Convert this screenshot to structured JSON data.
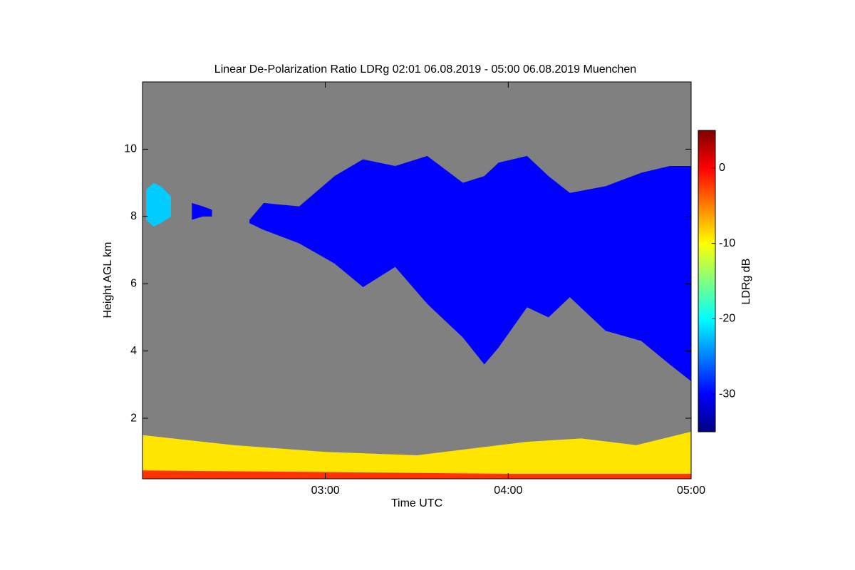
{
  "chart_data": {
    "type": "heatmap",
    "title": "Linear De-Polarization Ratio LDRg   02:01 06.08.2019 - 05:00 06.08.2019 Muenchen",
    "xlabel": "Time UTC",
    "ylabel": "Height AGL km",
    "colorbar_label": "LDRg dB",
    "background": "#808080",
    "xlim": [
      2,
      5
    ],
    "xticks": [
      {
        "value": 3,
        "label": "03:00"
      },
      {
        "value": 4,
        "label": "04:00"
      },
      {
        "value": 5,
        "label": "05:00"
      }
    ],
    "ylim": [
      0.2,
      12
    ],
    "yticks": [
      2,
      4,
      6,
      8,
      10
    ],
    "zlim": [
      -35,
      5
    ],
    "zticks": [
      -30,
      -20,
      -10,
      0
    ],
    "colormap": "jet",
    "layers": [
      {
        "x": [
          2.02,
          2.06,
          2.1,
          2.156
        ],
        "top": [
          8.8,
          9.0,
          8.9,
          8.6
        ],
        "base": [
          7.9,
          7.7,
          7.8,
          8.0
        ],
        "value": -22
      },
      {
        "x": [
          2.27,
          2.33,
          2.38
        ],
        "top": [
          8.4,
          8.3,
          8.2
        ],
        "base": [
          7.9,
          8.0,
          8.0
        ],
        "value": -30
      },
      {
        "x": [
          2.585,
          2.663,
          2.857,
          3.05,
          3.206,
          3.382,
          3.557,
          3.752,
          3.869,
          3.947,
          4.103,
          4.22,
          4.337,
          4.532,
          4.727,
          4.883,
          5.0
        ],
        "top": [
          7.9,
          8.4,
          8.3,
          9.2,
          9.7,
          9.5,
          9.8,
          9.0,
          9.2,
          9.6,
          9.8,
          9.2,
          8.7,
          8.9,
          9.3,
          9.5,
          9.5
        ],
        "base": [
          7.8,
          7.6,
          7.2,
          6.6,
          5.9,
          6.5,
          5.4,
          4.4,
          3.6,
          4.1,
          5.3,
          5.0,
          5.6,
          4.6,
          4.3,
          3.6,
          3.1
        ],
        "value": -30
      },
      {
        "x": [
          2.0,
          2.5,
          3.0,
          3.5,
          3.8,
          4.1,
          4.4,
          4.7,
          5.0
        ],
        "top": [
          1.5,
          1.2,
          1.0,
          0.9,
          1.1,
          1.3,
          1.4,
          1.2,
          1.6
        ],
        "base": [
          0.2,
          0.2,
          0.2,
          0.2,
          0.2,
          0.2,
          0.2,
          0.2,
          0.2
        ],
        "value": -9
      },
      {
        "x": [
          2.0,
          3.0,
          4.0,
          5.0
        ],
        "top": [
          0.45,
          0.4,
          0.35,
          0.35
        ],
        "base": [
          0.2,
          0.2,
          0.2,
          0.2
        ],
        "value": -2
      }
    ]
  }
}
